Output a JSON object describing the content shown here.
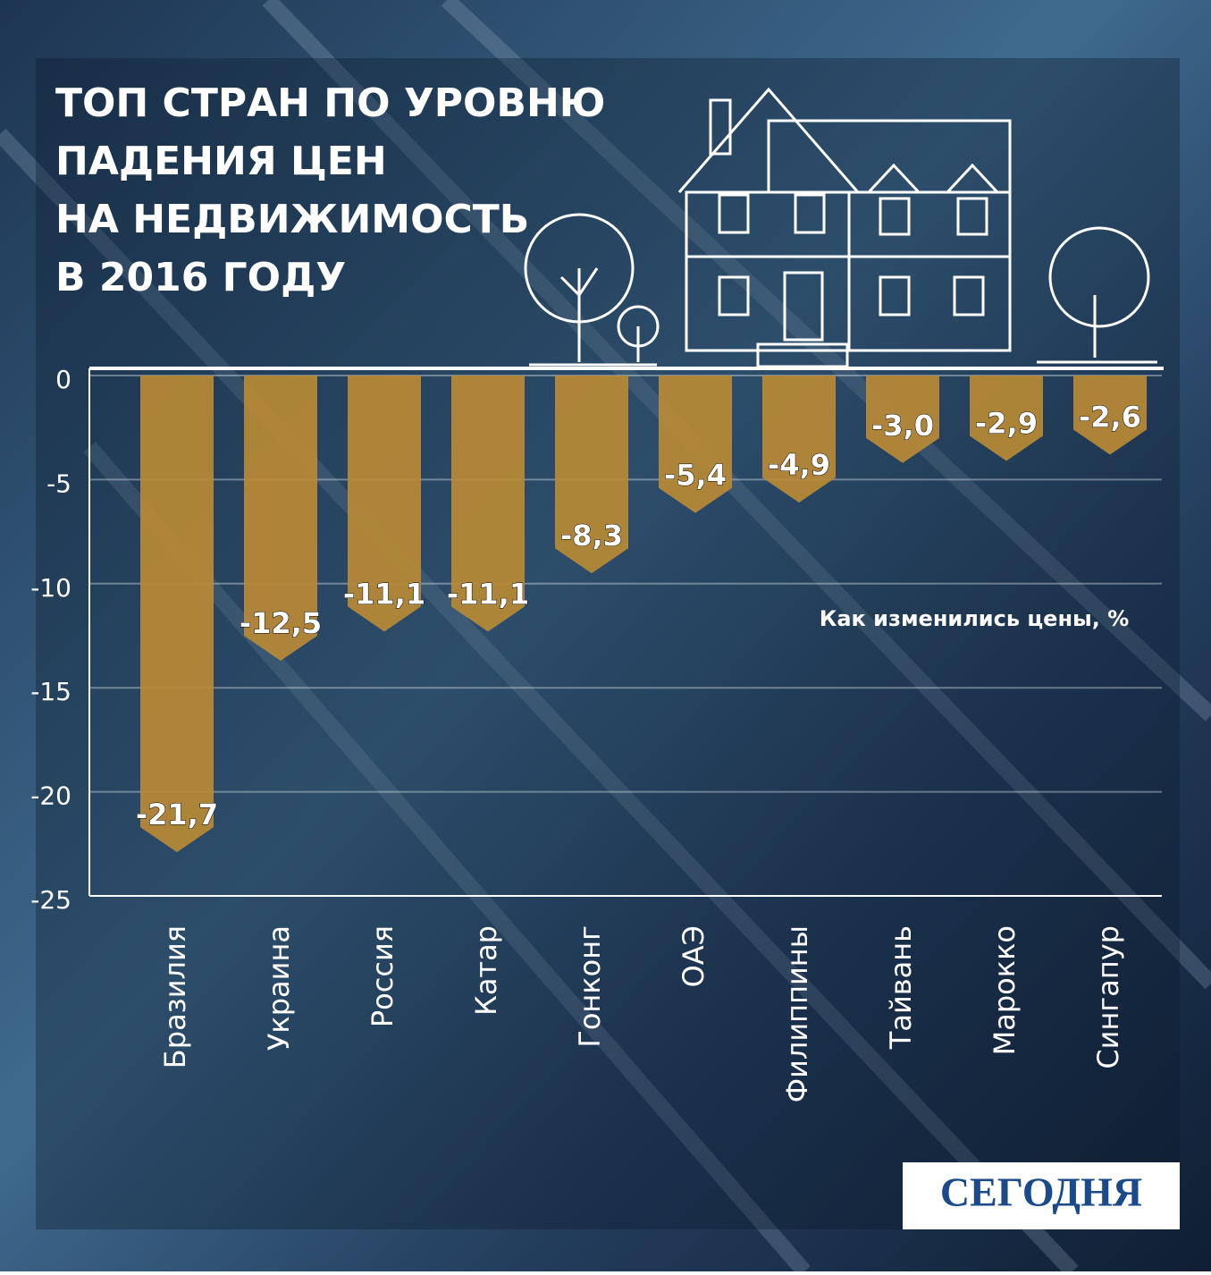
{
  "chart_data": {
    "type": "bar",
    "title": [
      "ТОП СТРАН ПО УРОВНЮ",
      "ПАДЕНИЯ ЦЕН",
      "НА НЕДВИЖИМОСТЬ",
      "В 2016 ГОДУ"
    ],
    "annotation": "Как изменились цены, %",
    "logo": "СЕГОДНЯ",
    "categories": [
      "Бразилия",
      "Украина",
      "Россия",
      "Катар",
      "Гонконг",
      "ОАЭ",
      "Филиппины",
      "Тайвань",
      "Марокко",
      "Сингапур"
    ],
    "values": [
      -21.7,
      -12.5,
      -11.1,
      -11.1,
      -8.3,
      -5.4,
      -4.9,
      -3.0,
      -2.9,
      -2.6
    ],
    "value_labels": [
      "-21,7",
      "-12,5",
      "-11,1",
      "-11,1",
      "-8,3",
      "-5,4",
      "-4,9",
      "-3,0",
      "-2,9",
      "-2,6"
    ],
    "color": "#b88a35",
    "ylim": [
      -25,
      0
    ],
    "yticks": [
      0,
      -5,
      -10,
      -15,
      -20,
      -25
    ],
    "grid": true
  }
}
